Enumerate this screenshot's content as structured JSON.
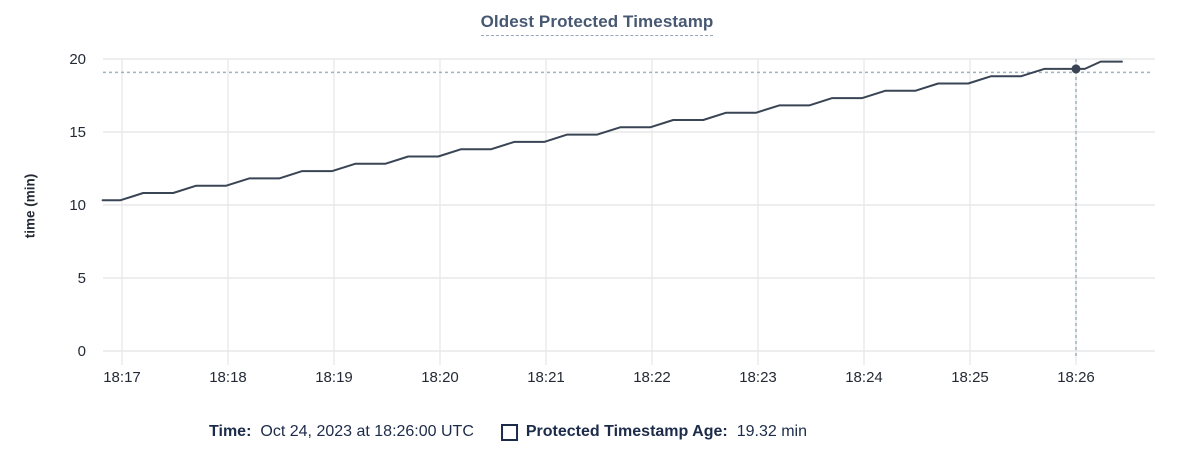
{
  "header": {
    "title": "Oldest Protected Timestamp"
  },
  "colors": {
    "title": "#475872",
    "line": "#394455",
    "hover_point": "#394455",
    "crosshair": "#9db4c0",
    "h_grid": "#e8e8e8",
    "v_grid": "#f0f0f0",
    "tick_text": "#242a35",
    "legend_text": "#1c2b4a"
  },
  "chart_data": {
    "type": "line",
    "title": "Oldest Protected Timestamp",
    "xlabel": "",
    "ylabel": "time (min)",
    "ylim": [
      0,
      20
    ],
    "y_ticks": [
      0,
      5,
      10,
      15,
      20
    ],
    "x_ticks": [
      "18:17",
      "18:18",
      "18:19",
      "18:20",
      "18:21",
      "18:22",
      "18:23",
      "18:24",
      "18:25",
      "18:26"
    ],
    "grid": true,
    "legend_position": "bottom",
    "series": [
      {
        "name": "Protected Timestamp Age",
        "unit": "min",
        "points": [
          [
            "18:16:49",
            10.32
          ],
          [
            "18:16:59",
            10.32
          ],
          [
            "18:17:12",
            10.82
          ],
          [
            "18:17:29",
            10.82
          ],
          [
            "18:17:42",
            11.32
          ],
          [
            "18:17:59",
            11.32
          ],
          [
            "18:18:12",
            11.82
          ],
          [
            "18:18:29",
            11.82
          ],
          [
            "18:18:42",
            12.32
          ],
          [
            "18:18:59",
            12.32
          ],
          [
            "18:19:12",
            12.82
          ],
          [
            "18:19:29",
            12.82
          ],
          [
            "18:19:42",
            13.32
          ],
          [
            "18:19:59",
            13.32
          ],
          [
            "18:20:12",
            13.82
          ],
          [
            "18:20:29",
            13.82
          ],
          [
            "18:20:42",
            14.32
          ],
          [
            "18:20:59",
            14.32
          ],
          [
            "18:21:12",
            14.82
          ],
          [
            "18:21:29",
            14.82
          ],
          [
            "18:21:42",
            15.32
          ],
          [
            "18:21:59",
            15.32
          ],
          [
            "18:22:12",
            15.82
          ],
          [
            "18:22:29",
            15.82
          ],
          [
            "18:22:42",
            16.32
          ],
          [
            "18:22:59",
            16.32
          ],
          [
            "18:23:12",
            16.82
          ],
          [
            "18:23:29",
            16.82
          ],
          [
            "18:23:42",
            17.32
          ],
          [
            "18:23:59",
            17.32
          ],
          [
            "18:24:12",
            17.82
          ],
          [
            "18:24:29",
            17.82
          ],
          [
            "18:24:42",
            18.32
          ],
          [
            "18:24:59",
            18.32
          ],
          [
            "18:25:12",
            18.82
          ],
          [
            "18:25:29",
            18.82
          ],
          [
            "18:25:42",
            19.32
          ],
          [
            "18:26:05",
            19.32
          ],
          [
            "18:26:14",
            19.82
          ],
          [
            "18:26:26",
            19.82
          ]
        ]
      }
    ],
    "hover_point": {
      "time": "18:26:00",
      "value": 19.32
    }
  },
  "tooltip": {
    "time_label": "Time:",
    "time_value": "Oct 24, 2023 at 18:26:00 UTC",
    "series_label": "Protected Timestamp Age:",
    "series_value": "19.32 min"
  }
}
